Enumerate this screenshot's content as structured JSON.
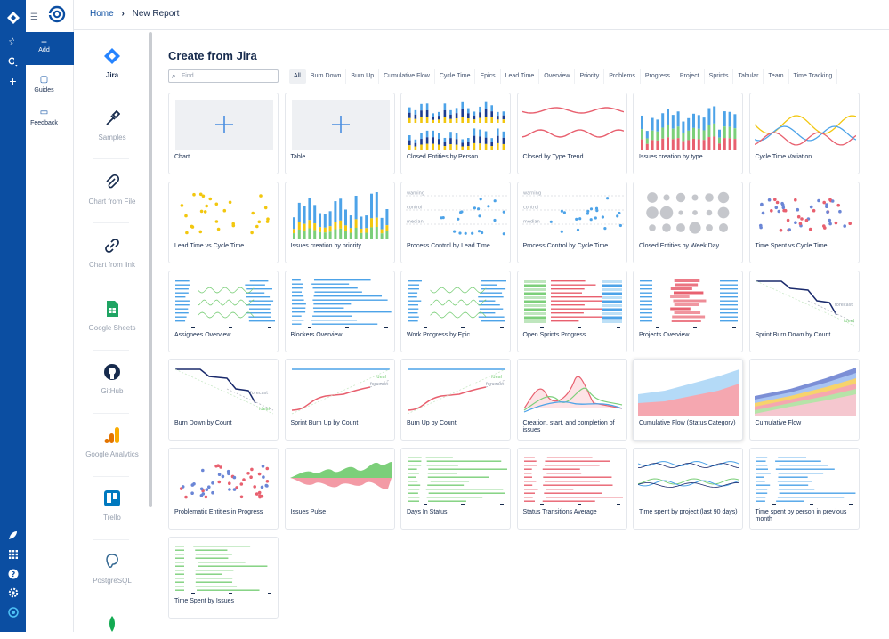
{
  "header": {
    "breadcrumb_home": "Home",
    "breadcrumb_current": "New Report"
  },
  "leftnav": {
    "add_label": "Add",
    "guides_label": "Guides",
    "feedback_label": "Feedback"
  },
  "sources": [
    "Jira",
    "Samples",
    "Chart from File",
    "Chart from link",
    "Google Sheets",
    "GitHub",
    "Google Analytics",
    "Trello",
    "PostgreSQL"
  ],
  "main": {
    "title": "Create from Jira",
    "search_placeholder": "Find",
    "filters": [
      "All",
      "Burn Down",
      "Burn Up",
      "Cumulative Flow",
      "Cycle Time",
      "Epics",
      "Lead Time",
      "Overview",
      "Priority",
      "Problems",
      "Progress",
      "Project",
      "Sprints",
      "Tabular",
      "Team",
      "Time Tracking"
    ],
    "cards": [
      {
        "label": "Chart",
        "kind": "add"
      },
      {
        "label": "Table",
        "kind": "add"
      },
      {
        "label": "Closed Entities by Person",
        "kind": "stackbars"
      },
      {
        "label": "Closed by Type Trend",
        "kind": "redlines"
      },
      {
        "label": "Issues creation by type",
        "kind": "bars3"
      },
      {
        "label": "Cycle Time Variation",
        "kind": "multiline"
      },
      {
        "label": "Lead Time vs Cycle Time",
        "kind": "yscatter"
      },
      {
        "label": "Issues creation by priority",
        "kind": "bars2"
      },
      {
        "label": "Process Control by Lead Time",
        "kind": "control"
      },
      {
        "label": "Process Control by Cycle Time",
        "kind": "control"
      },
      {
        "label": "Closed Entities by Week Day",
        "kind": "bubbles"
      },
      {
        "label": "Time Spent vs Cycle Time",
        "kind": "rbscatter"
      },
      {
        "label": "Assignees Overview",
        "kind": "overview"
      },
      {
        "label": "Blockers Overview",
        "kind": "blueh"
      },
      {
        "label": "Work Progress by Epic",
        "kind": "overview"
      },
      {
        "label": "Open Sprints Progress",
        "kind": "sprints"
      },
      {
        "label": "Projects Overview",
        "kind": "projects"
      },
      {
        "label": "Sprint Burn Down by Count",
        "kind": "burndown"
      },
      {
        "label": "Burn Down by Count",
        "kind": "burndown2"
      },
      {
        "label": "Sprint Burn Up by Count",
        "kind": "burnup"
      },
      {
        "label": "Burn Up by Count",
        "kind": "burnup"
      },
      {
        "label": "Creation, start, and completion of issues",
        "kind": "peaks"
      },
      {
        "label": "Cumulative Flow (Status Category)",
        "kind": "cumflow2"
      },
      {
        "label": "Cumulative Flow",
        "kind": "cumflow"
      },
      {
        "label": "Problematic Entities in Progress",
        "kind": "rbscatter2"
      },
      {
        "label": "Issues Pulse",
        "kind": "pulse"
      },
      {
        "label": "Days In Status",
        "kind": "greenh"
      },
      {
        "label": "Status Transitions Average",
        "kind": "redh"
      },
      {
        "label": "Time spent by project (last 90 days)",
        "kind": "waves"
      },
      {
        "label": "Time spent by person in previous month",
        "kind": "blueh2"
      },
      {
        "label": "Time Spent by Issues",
        "kind": "greenh2"
      }
    ],
    "annotations": {
      "warning": "warning",
      "control": "control",
      "median": "median",
      "forecast": "forecast",
      "ideal": "ideal"
    }
  },
  "colors": {
    "brand": "#0b4ea2",
    "blue": "#4da3e8",
    "red": "#e8606f",
    "green": "#7ccf7a",
    "yellow": "#f2c70f",
    "navy": "#1a2a6c"
  }
}
